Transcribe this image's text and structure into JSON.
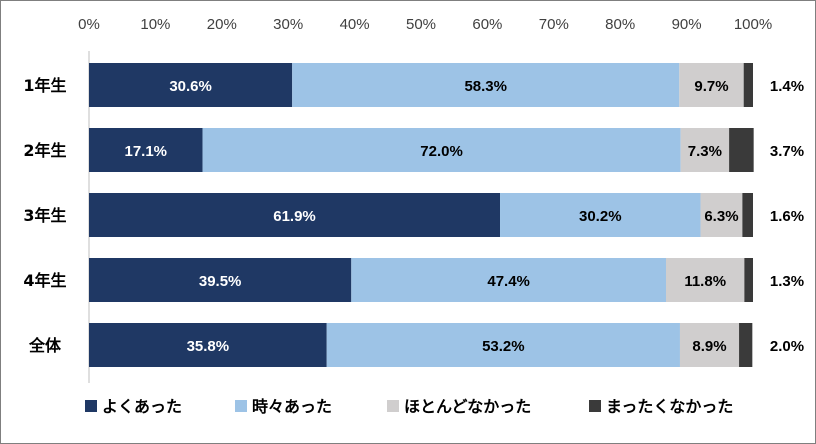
{
  "chart_data": {
    "type": "bar",
    "orientation": "horizontal",
    "stacked": "percent",
    "categories": [
      "1年生",
      "2年生",
      "3年生",
      "4年生",
      "全体"
    ],
    "series": [
      {
        "name": "よくあった",
        "values": [
          30.6,
          17.1,
          61.9,
          39.5,
          35.8
        ],
        "color": "#1f3864",
        "label_color": "#ffffff"
      },
      {
        "name": "時々あった",
        "values": [
          58.3,
          72.0,
          30.2,
          47.4,
          53.2
        ],
        "color": "#9dc3e6",
        "label_color": "#000000"
      },
      {
        "name": "ほとんどなかった",
        "values": [
          9.7,
          7.3,
          6.3,
          11.8,
          8.9
        ],
        "color": "#d0cece",
        "label_color": "#000000"
      },
      {
        "name": "まったくなかった",
        "values": [
          1.4,
          3.7,
          1.6,
          1.3,
          2.0
        ],
        "color": "#3a3a3a",
        "label_color": "#000000"
      }
    ],
    "xlim": [
      0,
      100
    ],
    "xticks": [
      "0%",
      "10%",
      "20%",
      "30%",
      "40%",
      "50%",
      "60%",
      "70%",
      "80%",
      "90%",
      "100%"
    ],
    "value_labels": [
      [
        "30.6%",
        "58.3%",
        "9.7%",
        "1.4%"
      ],
      [
        "17.1%",
        "72.0%",
        "7.3%",
        "3.7%"
      ],
      [
        "61.9%",
        "30.2%",
        "6.3%",
        "1.6%"
      ],
      [
        "39.5%",
        "47.4%",
        "11.8%",
        "1.3%"
      ],
      [
        "35.8%",
        "53.2%",
        "8.9%",
        "2.0%"
      ]
    ],
    "x_axis_position": "top",
    "grid": false,
    "legend_position": "bottom"
  }
}
